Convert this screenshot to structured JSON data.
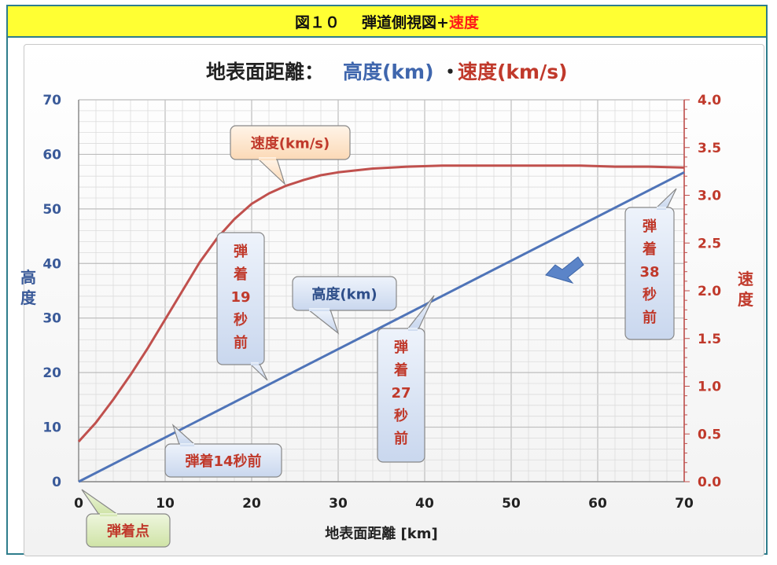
{
  "header": {
    "figure_label": "図１０",
    "title_main": "弾道側視図+",
    "title_red": "速度"
  },
  "chart_data": {
    "type": "line",
    "title": {
      "prefix": "地表面距離：",
      "blue": "高度(km)",
      "sep": "・",
      "red": "速度(km/s)"
    },
    "xlabel": "地表面距離 [km]",
    "ylabel_left": "高度",
    "ylabel_right": "速度",
    "xlim": [
      0,
      70
    ],
    "ylim_left": [
      0,
      70
    ],
    "ylim_right": [
      0.0,
      4.0
    ],
    "x_ticks": [
      "0",
      "10",
      "20",
      "30",
      "40",
      "50",
      "60",
      "70"
    ],
    "y_left_ticks": [
      "0",
      "10",
      "20",
      "30",
      "40",
      "50",
      "60",
      "70"
    ],
    "y_right_ticks": [
      "0.0",
      "0.5",
      "1.0",
      "1.5",
      "2.0",
      "2.5",
      "3.0",
      "3.5",
      "4.0"
    ],
    "grid": true,
    "series": [
      {
        "name": "高度(km)",
        "axis": "left",
        "color": "#4f74b8",
        "x": [
          0,
          70
        ],
        "y": [
          0,
          56.7
        ]
      },
      {
        "name": "速度(km/s)",
        "axis": "right",
        "color": "#c0504d",
        "x": [
          0,
          2,
          4,
          6,
          8,
          10,
          12,
          14,
          16,
          18,
          20,
          22,
          24,
          26,
          28,
          30,
          34,
          38,
          42,
          46,
          50,
          54,
          58,
          62,
          66,
          70
        ],
        "y": [
          0.42,
          0.62,
          0.86,
          1.12,
          1.4,
          1.7,
          2.0,
          2.3,
          2.55,
          2.75,
          2.91,
          3.02,
          3.1,
          3.16,
          3.21,
          3.24,
          3.28,
          3.3,
          3.31,
          3.31,
          3.31,
          3.31,
          3.31,
          3.3,
          3.3,
          3.29
        ]
      }
    ],
    "annotations": [
      {
        "id": "speed",
        "text": "速度(km/s)"
      },
      {
        "id": "alt",
        "text": "高度(km)"
      },
      {
        "id": "impact19",
        "lines": [
          "弾",
          "着",
          "19",
          "秒",
          "前"
        ]
      },
      {
        "id": "impact27",
        "lines": [
          "弾",
          "着",
          "27",
          "秒",
          "前"
        ]
      },
      {
        "id": "impact38",
        "lines": [
          "弾",
          "着",
          "38",
          "秒",
          "前"
        ]
      },
      {
        "id": "impact14",
        "text": "弾着14秒前"
      },
      {
        "id": "impact_point",
        "text": "弾着点"
      }
    ]
  }
}
